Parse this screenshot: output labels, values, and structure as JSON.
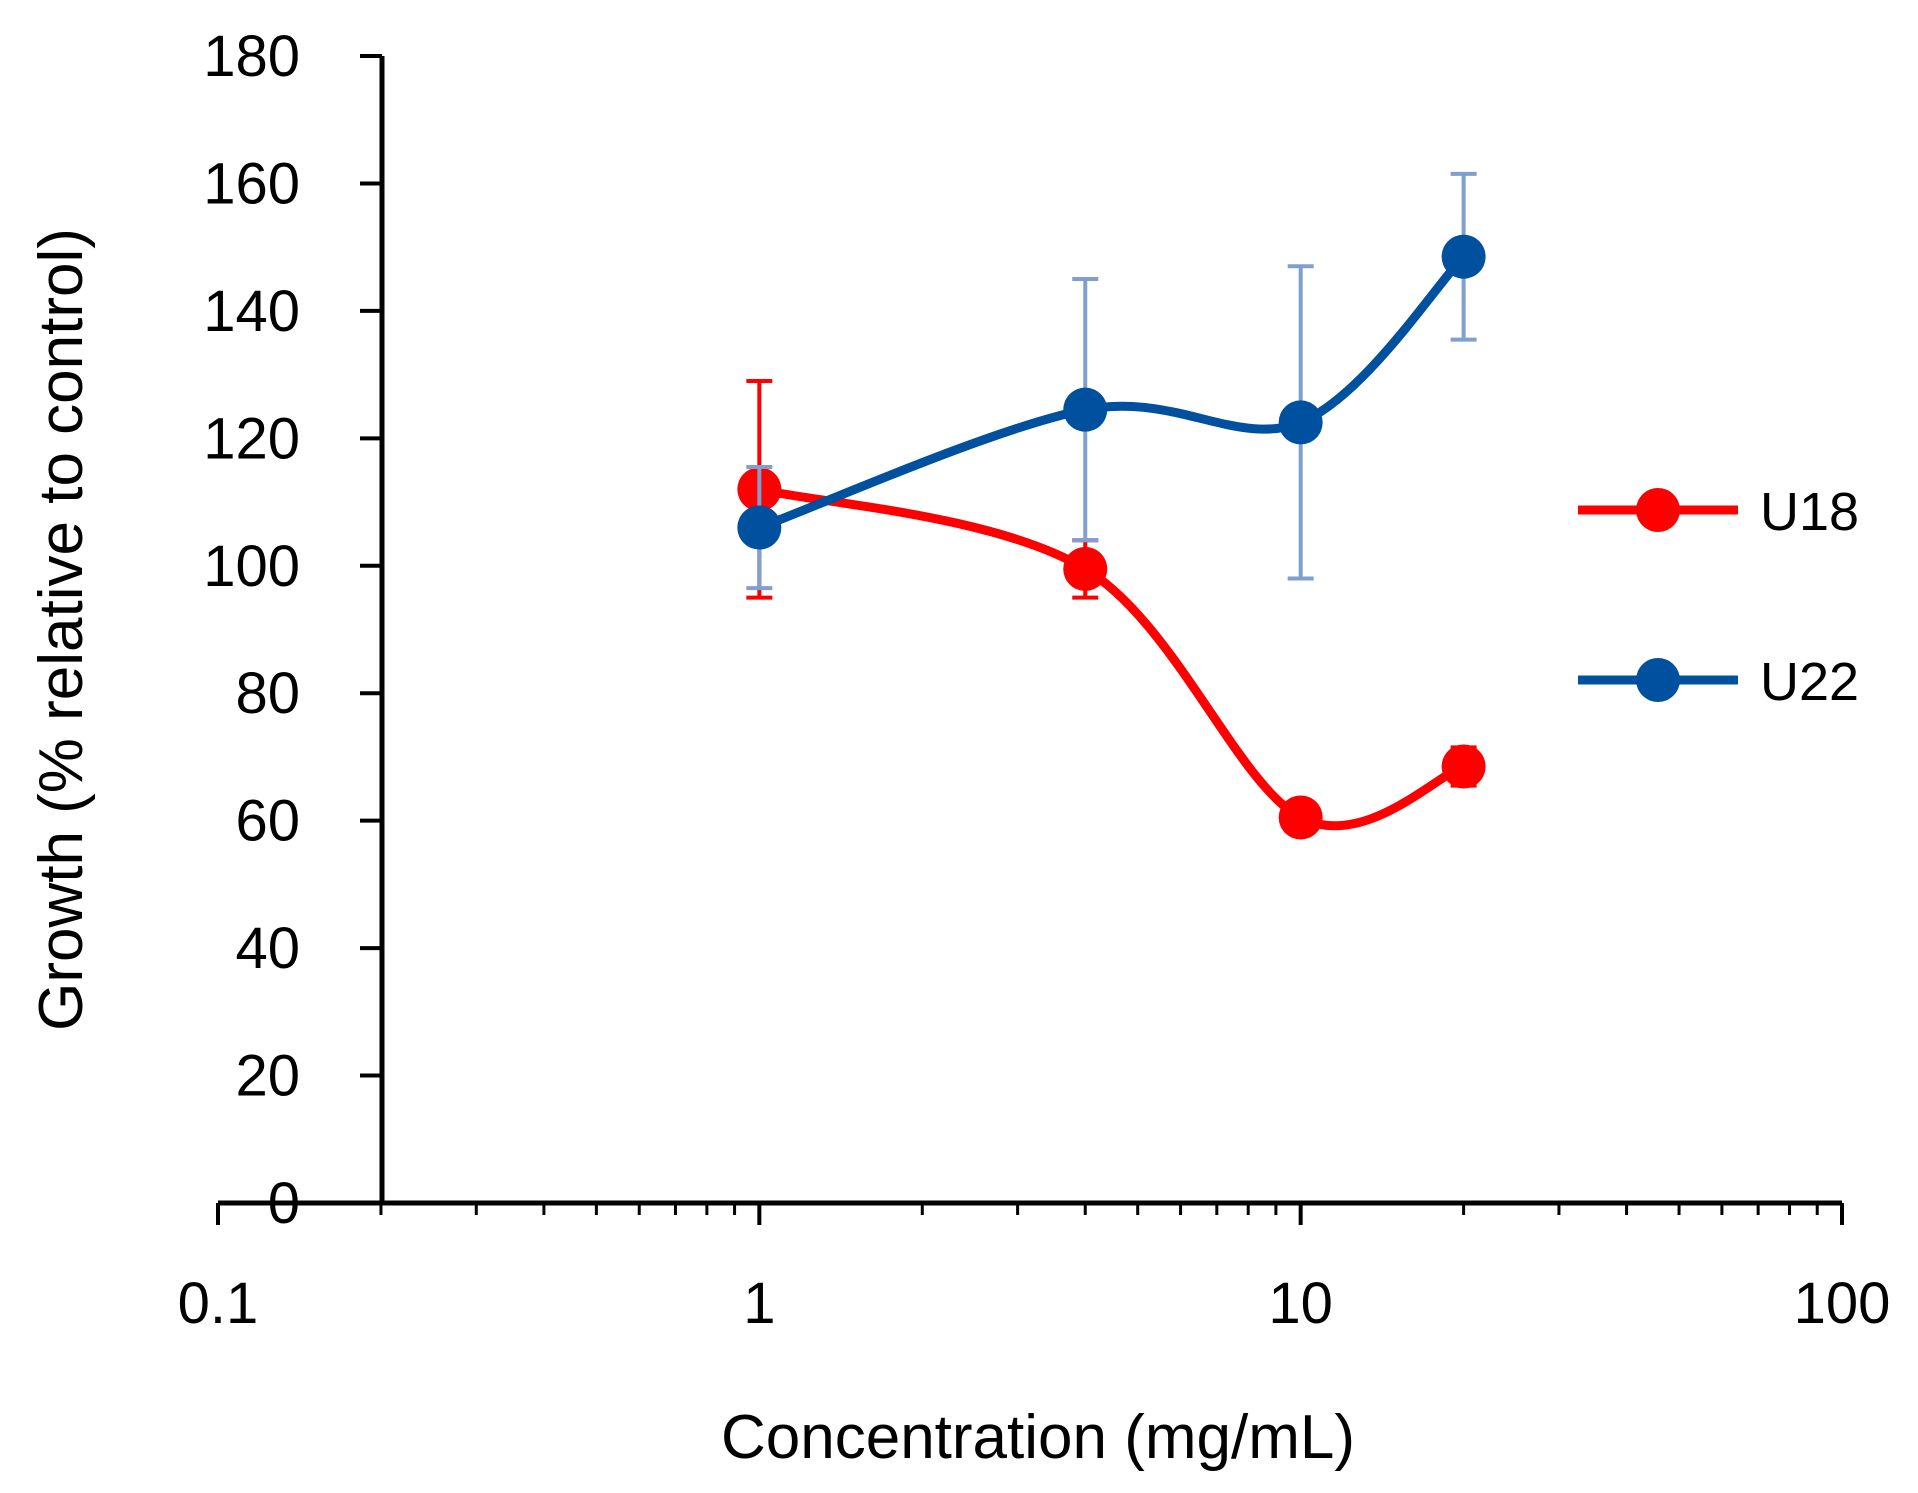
{
  "chart_data": {
    "type": "line",
    "xscale": "log",
    "xlabel": "Concentration (mg/mL)",
    "ylabel": "Growth (% relative to control)",
    "xlim": [
      0.1,
      100
    ],
    "ylim": [
      0,
      180
    ],
    "x_ticks": [
      "0.1",
      "1",
      "10",
      "100"
    ],
    "y_ticks": [
      "0",
      "20",
      "40",
      "60",
      "80",
      "100",
      "120",
      "140",
      "160",
      "180"
    ],
    "grid": false,
    "legend_position": "right",
    "series": [
      {
        "name": "U18",
        "color": "#FF0000",
        "x": [
          1,
          4,
          10,
          20
        ],
        "values": [
          112,
          99.5,
          60.5,
          68.5
        ],
        "error": [
          17,
          4.5,
          1.5,
          3
        ]
      },
      {
        "name": "U22",
        "color": "#0050A0",
        "error_color": "#7F9FCF",
        "x": [
          1,
          4,
          10,
          20
        ],
        "values": [
          106,
          124.5,
          122.5,
          148.5
        ],
        "error": [
          9.5,
          20.5,
          24.5,
          13
        ]
      }
    ]
  }
}
